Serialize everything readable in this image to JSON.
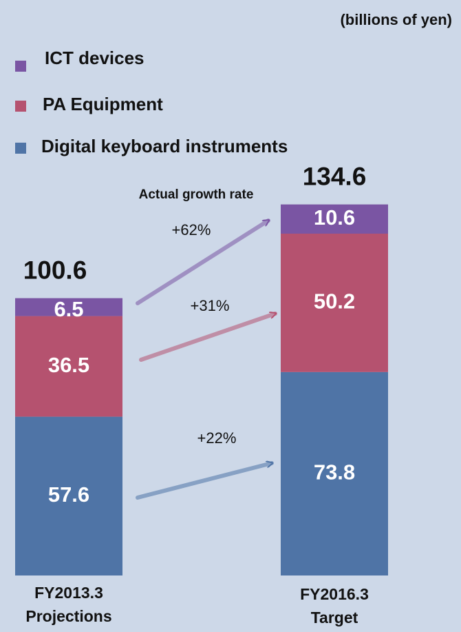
{
  "chart_data": {
    "type": "stacked_bar",
    "unit_label": "(billions of yen)",
    "annotation": "Actual growth rate",
    "categories": [
      "FY2013.3\nProjections",
      "FY2016.3\nTarget"
    ],
    "series": [
      {
        "name": "Digital keyboard instruments",
        "color": "#4f74a6",
        "values": [
          57.6,
          73.8
        ]
      },
      {
        "name": "PA Equipment",
        "color": "#b5526f",
        "values": [
          36.5,
          50.2
        ]
      },
      {
        "name": "ICT devices",
        "color": "#7a55a3",
        "values": [
          6.5,
          10.6
        ]
      }
    ],
    "totals": [
      100.6,
      134.6
    ],
    "growth": {
      "values": [
        22,
        31,
        62
      ],
      "value_labels": [
        "+22%",
        "+31%",
        "+62%"
      ]
    },
    "ylim": [
      0,
      140
    ]
  }
}
